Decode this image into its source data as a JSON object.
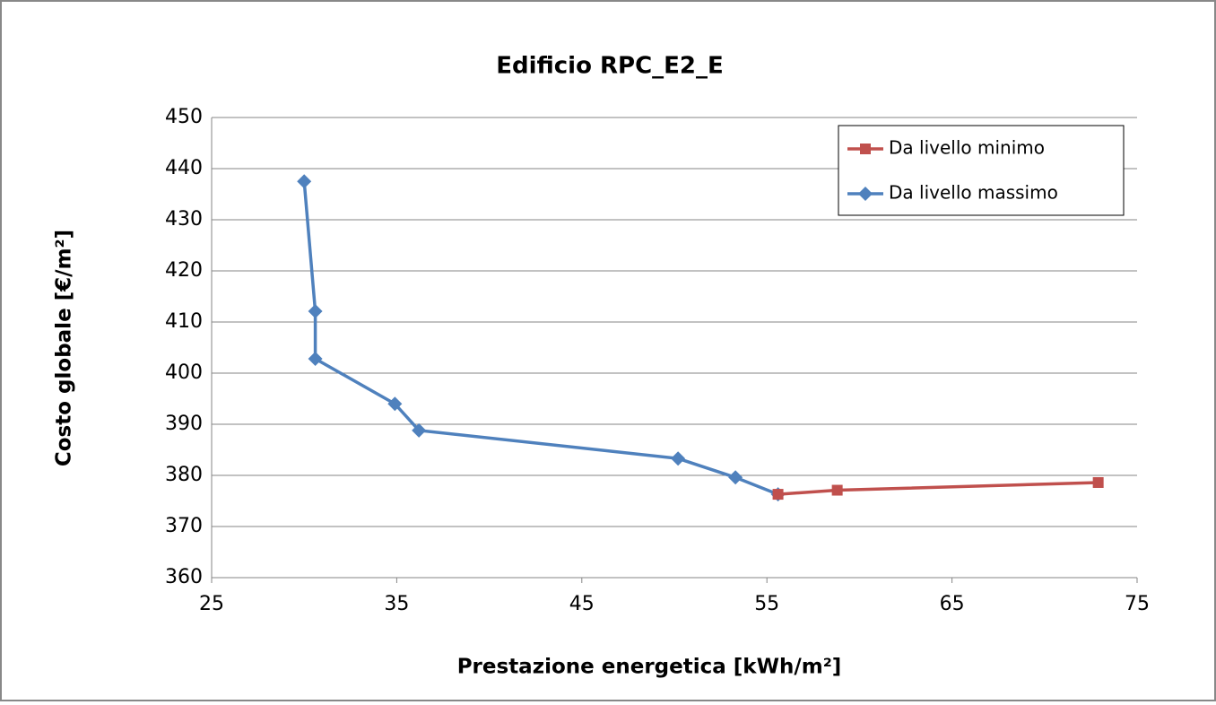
{
  "chart_data": {
    "type": "line",
    "title": "Edificio RPC_E2_E",
    "x_label": "Prestazione energetica [kWh/m²]",
    "y_label": "Costo globale [€/m²]",
    "series": [
      {
        "name": "Da livello minimo",
        "color": "#c0504d",
        "marker": "square",
        "x": [
          55.6,
          58.8,
          72.9
        ],
        "values": [
          376.3,
          377.1,
          378.6
        ]
      },
      {
        "name": "Da livello massimo",
        "color": "#4f81bd",
        "marker": "diamond",
        "x": [
          30.0,
          30.6,
          30.6,
          34.9,
          36.2,
          50.2,
          53.3,
          55.6
        ],
        "values": [
          437.5,
          412.1,
          402.8,
          394.0,
          388.8,
          383.3,
          379.6,
          376.3
        ]
      }
    ],
    "xlim": [
      25,
      75
    ],
    "xticks": [
      25,
      35,
      45,
      55,
      65,
      75
    ],
    "ylim": [
      360,
      450
    ],
    "yticks": [
      360,
      370,
      380,
      390,
      400,
      410,
      420,
      430,
      440,
      450
    ],
    "grid": true,
    "legend": "upper-right"
  }
}
